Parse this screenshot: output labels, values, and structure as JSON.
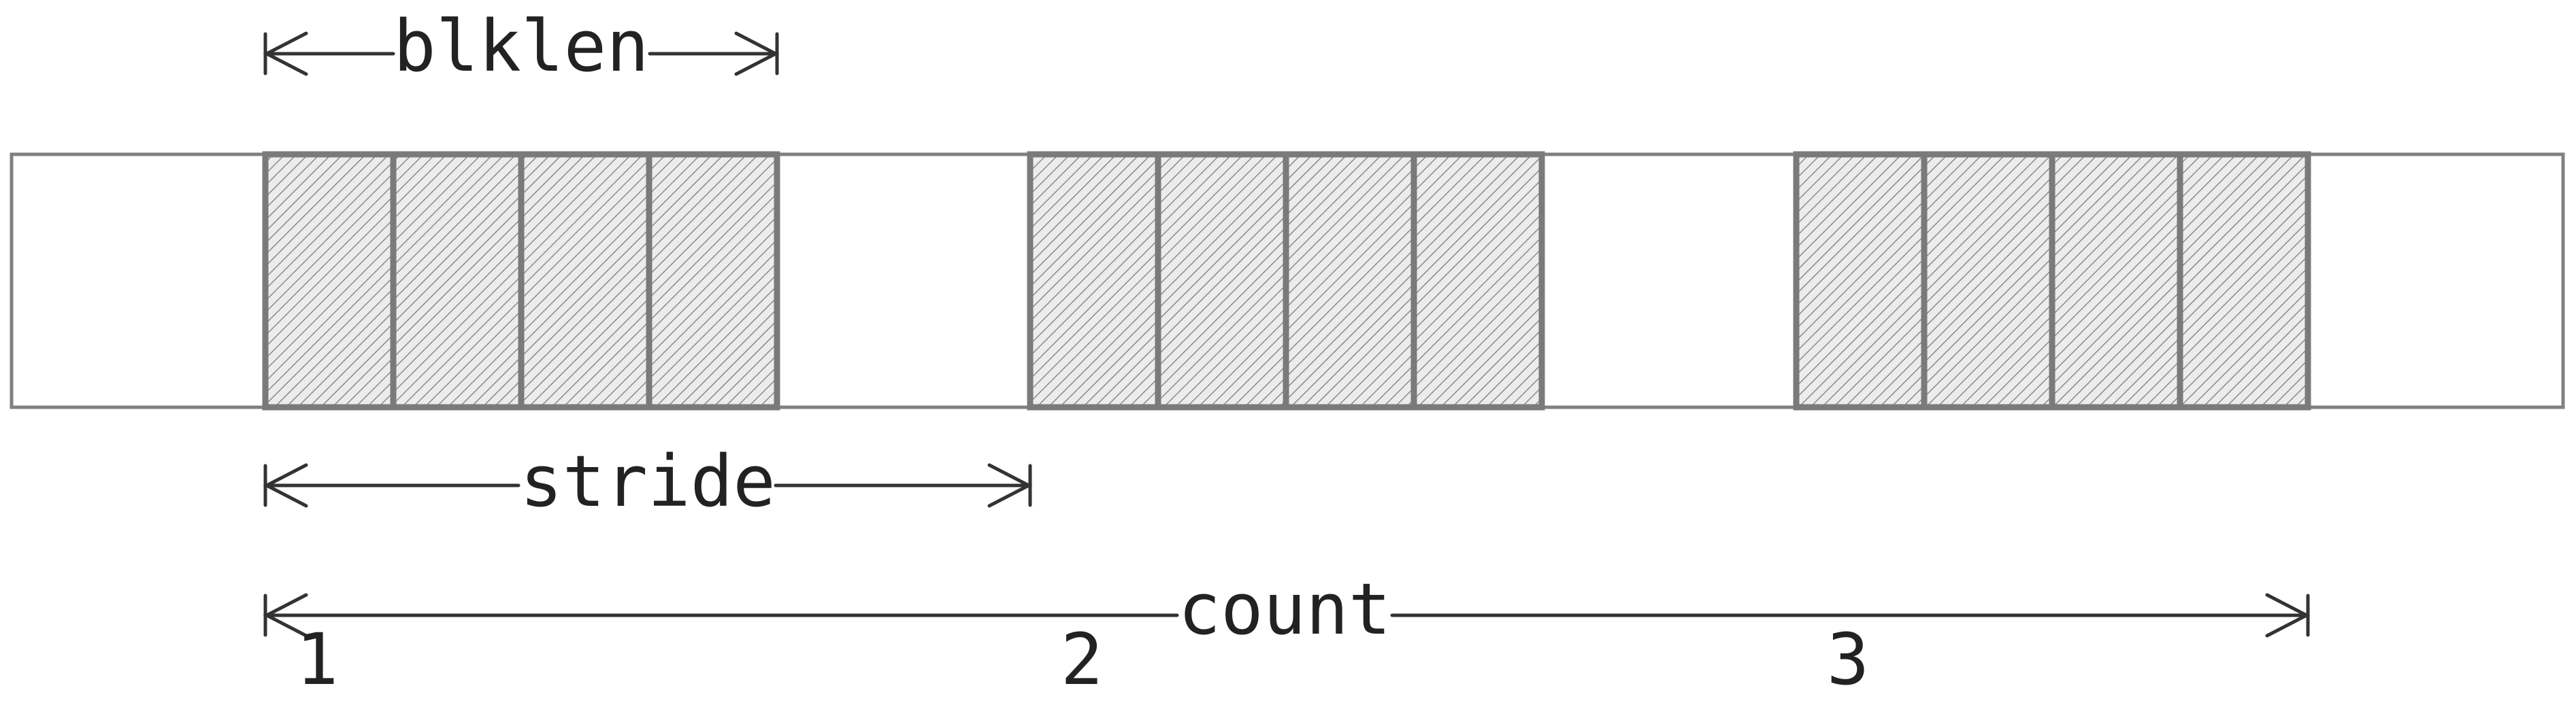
{
  "labels": {
    "blklen": "blklen",
    "stride": "stride",
    "count": "count"
  },
  "block_indices": [
    "1",
    "2",
    "3"
  ],
  "colors": {
    "outline": "#808080",
    "hatch": "#8a8a8a",
    "arrow": "#333333"
  }
}
